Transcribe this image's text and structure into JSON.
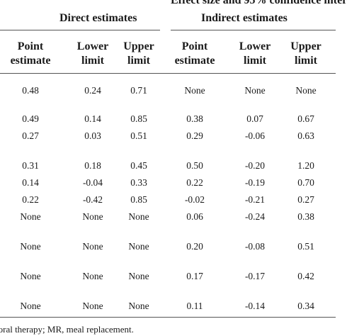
{
  "caption": "Effect size and 95% confidence inter",
  "groups": {
    "direct": "Direct estimates",
    "indirect": "Indirect estimates"
  },
  "columns": {
    "point": [
      "Point",
      "estimate"
    ],
    "lower": [
      "Lower",
      "limit"
    ],
    "upper": [
      "Upper",
      "limit"
    ]
  },
  "rows": [
    [
      "0.48",
      "0.24",
      "0.71",
      "None",
      "None",
      "None"
    ],
    [
      "0.49",
      "0.14",
      "0.85",
      "0.38",
      "0.07",
      "0.67"
    ],
    [
      "0.27",
      "0.03",
      "0.51",
      "0.29",
      "-0.06",
      "0.63"
    ],
    [
      "0.31",
      "0.18",
      "0.45",
      "0.50",
      "-0.20",
      "1.20"
    ],
    [
      "0.14",
      "-0.04",
      "0.33",
      "0.22",
      "-0.19",
      "0.70"
    ],
    [
      "0.22",
      "-0.42",
      "0.85",
      "-0.02",
      "-0.21",
      "0.27"
    ],
    [
      "None",
      "None",
      "None",
      "0.06",
      "-0.24",
      "0.38"
    ],
    [
      "None",
      "None",
      "None",
      "0.20",
      "-0.08",
      "0.51"
    ],
    [
      "None",
      "None",
      "None",
      "0.17",
      "-0.17",
      "0.42"
    ],
    [
      "None",
      "None",
      "None",
      "0.11",
      "-0.14",
      "0.34"
    ]
  ],
  "footnote": "ioral therapy; MR, meal replacement."
}
